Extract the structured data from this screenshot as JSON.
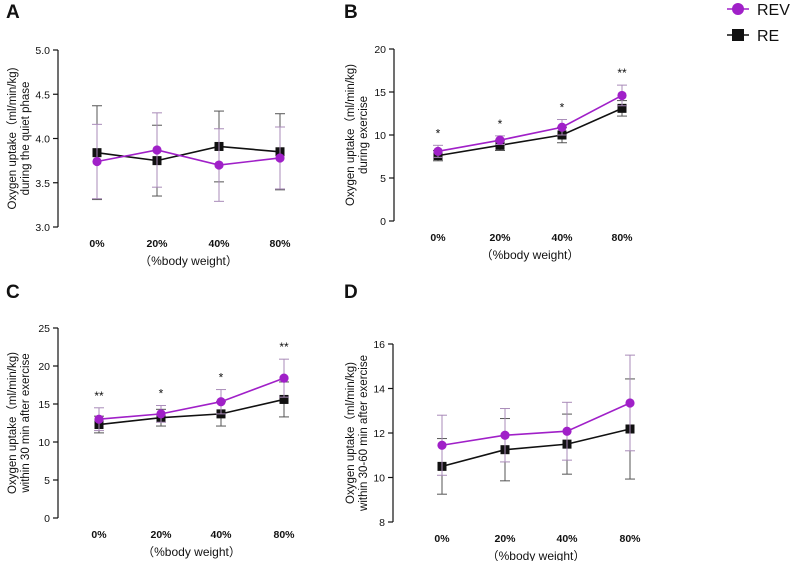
{
  "legend": {
    "entries": [
      {
        "name": "REV",
        "color": "#A020C8",
        "marker": "circle"
      },
      {
        "name": "RE",
        "color": "#111111",
        "marker": "square"
      }
    ]
  },
  "chart_data": [
    {
      "panel": "A",
      "type": "line",
      "categories": [
        "0%",
        "20%",
        "40%",
        "80%"
      ],
      "xlabel": "（%body weight）",
      "ylabel": [
        "Oxygen uptake（ml/min/kg)",
        "during the quiet phase"
      ],
      "ylim": [
        3.0,
        5.0
      ],
      "yticks": [
        "3.0",
        "3.5",
        "4.0",
        "4.5",
        "5.0"
      ],
      "series": [
        {
          "name": "REV",
          "values": [
            3.74,
            3.87,
            3.7,
            3.78
          ],
          "errors": [
            0.42,
            0.42,
            0.41,
            0.35
          ]
        },
        {
          "name": "RE",
          "values": [
            3.84,
            3.75,
            3.91,
            3.85
          ],
          "errors": [
            0.53,
            0.4,
            0.4,
            0.43
          ]
        }
      ],
      "annotations": [
        "",
        "",
        "",
        ""
      ]
    },
    {
      "panel": "B",
      "type": "line",
      "categories": [
        "0%",
        "20%",
        "40%",
        "80%"
      ],
      "xlabel": "（%body weight）",
      "ylabel": [
        "Oxygen uptake（ml/min/kg)",
        "during exercise"
      ],
      "ylim": [
        0,
        20
      ],
      "yticks": [
        "0",
        "5",
        "10",
        "15",
        "20"
      ],
      "series": [
        {
          "name": "REV",
          "values": [
            8.1,
            9.4,
            10.9,
            14.6
          ],
          "errors": [
            0.7,
            0.5,
            0.9,
            1.2
          ]
        },
        {
          "name": "RE",
          "values": [
            7.6,
            8.8,
            10.0,
            13.1
          ],
          "errors": [
            0.6,
            0.6,
            0.9,
            0.9
          ]
        }
      ],
      "annotations": [
        "*",
        "*",
        "*",
        "**"
      ]
    },
    {
      "panel": "C",
      "type": "line",
      "categories": [
        "0%",
        "20%",
        "40%",
        "80%"
      ],
      "xlabel": "（%body weight）",
      "ylabel": [
        "Oxygen uptake（ml/min/kg)",
        "within 30 min after exercise"
      ],
      "ylim": [
        0,
        25
      ],
      "yticks": [
        "0",
        "5",
        "10",
        "15",
        "20",
        "25"
      ],
      "series": [
        {
          "name": "REV",
          "values": [
            13.0,
            13.7,
            15.3,
            18.4
          ],
          "errors": [
            1.5,
            1.1,
            1.6,
            2.5
          ]
        },
        {
          "name": "RE",
          "values": [
            12.3,
            13.2,
            13.7,
            15.6
          ],
          "errors": [
            1.1,
            1.1,
            1.6,
            2.3
          ]
        }
      ],
      "annotations": [
        "**",
        "*",
        "*",
        "**"
      ]
    },
    {
      "panel": "D",
      "type": "line",
      "categories": [
        "0%",
        "20%",
        "40%",
        "80%"
      ],
      "xlabel": "（%body weight）",
      "ylabel": [
        "Oxygen uptake（ml/min/kg)",
        "within 30-60 min after exercise"
      ],
      "ylim": [
        8,
        16
      ],
      "yticks": [
        "8",
        "10",
        "12",
        "14",
        "16"
      ],
      "series": [
        {
          "name": "REV",
          "values": [
            11.45,
            11.9,
            12.08,
            13.35
          ],
          "errors": [
            1.35,
            1.2,
            1.3,
            2.15
          ]
        },
        {
          "name": "RE",
          "values": [
            10.5,
            11.25,
            11.5,
            12.18
          ],
          "errors": [
            1.25,
            1.4,
            1.35,
            2.25
          ]
        }
      ],
      "annotations": [
        "",
        "",
        "",
        ""
      ]
    }
  ]
}
